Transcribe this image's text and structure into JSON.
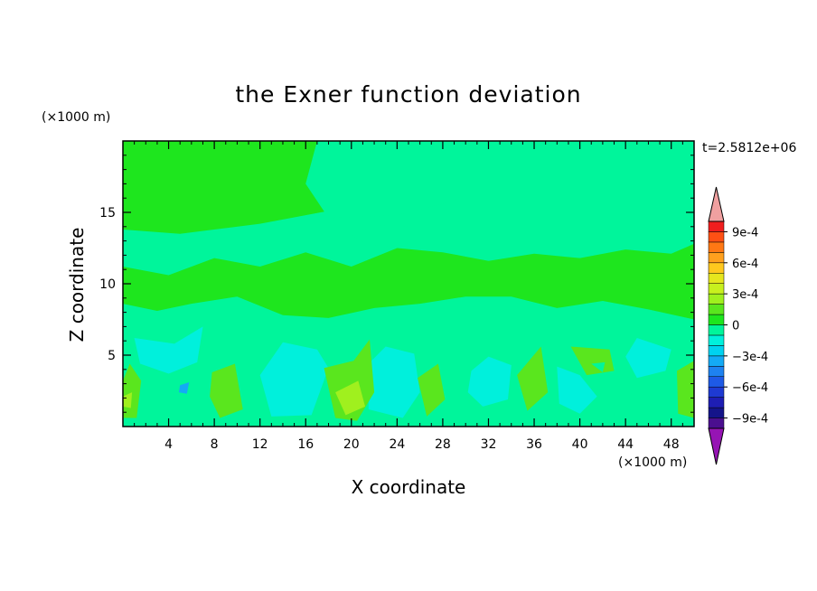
{
  "chart_data": {
    "type": "heatmap",
    "title": "the Exner function deviation",
    "xlabel": "X coordinate",
    "ylabel": "Z coordinate",
    "x_unit": "(×1000 m)",
    "y_unit": "(×1000 m)",
    "time_label": "t=2.5812e+06",
    "xlim": [
      0,
      50
    ],
    "ylim": [
      0,
      20
    ],
    "x_ticks": [
      4,
      8,
      12,
      16,
      20,
      24,
      28,
      32,
      36,
      40,
      44,
      48
    ],
    "y_ticks": [
      5,
      10,
      15
    ],
    "colorbar": {
      "levels": [
        -0.001,
        -0.0009,
        -0.0008,
        -0.0007,
        -0.0006,
        -0.0005,
        -0.0004,
        -0.0003,
        -0.0002,
        -0.0001,
        0,
        0.0001,
        0.0002,
        0.0003,
        0.0004,
        0.0005,
        0.0006,
        0.0007,
        0.0008,
        0.0009,
        0.001
      ],
      "colors": [
        "#4b0f8f",
        "#14148a",
        "#1e1eb4",
        "#1e3ad2",
        "#1e5ae6",
        "#1e82f0",
        "#14aaf5",
        "#00d2f0",
        "#00f0dc",
        "#00f59b",
        "#1ee61e",
        "#5ae61e",
        "#a0f01e",
        "#c8f01e",
        "#e6e61e",
        "#ffc81e",
        "#ffa01e",
        "#ff7814",
        "#ff5014",
        "#f01e1e"
      ],
      "under_color": "#9614b4",
      "over_color": "#f0a0a0",
      "tick_labels": [
        "9e-4",
        "6e-4",
        "3e-4",
        "0",
        "−3e-4",
        "−6e-4",
        "−9e-4"
      ]
    },
    "regions": [
      {
        "level": 0,
        "shape": [
          [
            0,
            20
          ],
          [
            30.5,
            20
          ],
          [
            30,
            17.2
          ],
          [
            28,
            16
          ],
          [
            24,
            15
          ],
          [
            18,
            15.1
          ],
          [
            12,
            14.2
          ],
          [
            5,
            13.5
          ],
          [
            0,
            13.8
          ]
        ]
      },
      {
        "level": -0.0001,
        "shape": [
          [
            17,
            20
          ],
          [
            31,
            20
          ],
          [
            30.5,
            16.8
          ],
          [
            29,
            15.8
          ],
          [
            24,
            14.8
          ],
          [
            18,
            14.6
          ],
          [
            16,
            17
          ]
        ]
      },
      {
        "level": 0,
        "shape": [
          [
            0,
            11.2
          ],
          [
            4,
            10.6
          ],
          [
            8,
            11.8
          ],
          [
            12,
            11.2
          ],
          [
            16,
            12.2
          ],
          [
            20,
            11.2
          ],
          [
            24,
            12.5
          ],
          [
            28,
            12.2
          ],
          [
            32,
            11.6
          ],
          [
            36,
            12.1
          ],
          [
            40,
            11.8
          ],
          [
            44,
            12.4
          ],
          [
            48,
            12.1
          ],
          [
            50,
            12.8
          ],
          [
            50,
            7.5
          ],
          [
            46,
            8.2
          ],
          [
            42,
            8.8
          ],
          [
            38,
            8.3
          ],
          [
            34,
            9.1
          ],
          [
            30,
            9.1
          ],
          [
            26,
            8.6
          ],
          [
            22,
            8.3
          ],
          [
            18,
            7.6
          ],
          [
            14,
            7.8
          ],
          [
            10,
            9.1
          ],
          [
            6,
            8.6
          ],
          [
            3,
            8.1
          ],
          [
            0,
            8.6
          ]
        ]
      },
      {
        "level": -0.0001,
        "shape": [
          [
            20,
            13.4
          ],
          [
            21.5,
            12.7
          ],
          [
            24,
            12.6
          ],
          [
            26,
            13.1
          ],
          [
            25,
            14
          ],
          [
            22,
            14.1
          ]
        ]
      },
      {
        "level": -0.0002,
        "shape": [
          [
            1,
            6.2
          ],
          [
            4.5,
            5.8
          ],
          [
            7,
            7
          ],
          [
            6.5,
            4.5
          ],
          [
            4,
            3.7
          ],
          [
            1.5,
            4.4
          ]
        ]
      },
      {
        "level": -0.0002,
        "shape": [
          [
            12,
            3.6
          ],
          [
            14,
            5.9
          ],
          [
            17,
            5.4
          ],
          [
            18,
            4.1
          ],
          [
            16.5,
            0.8
          ],
          [
            13,
            0.7
          ]
        ]
      },
      {
        "level": -0.0002,
        "shape": [
          [
            21.5,
            4.4
          ],
          [
            23,
            5.6
          ],
          [
            25.5,
            5.1
          ],
          [
            26,
            2.4
          ],
          [
            24.5,
            0.6
          ],
          [
            21.5,
            1.2
          ]
        ]
      },
      {
        "level": -0.0002,
        "shape": [
          [
            30.5,
            3.9
          ],
          [
            32,
            4.9
          ],
          [
            34,
            4.3
          ],
          [
            33.7,
            1.9
          ],
          [
            31.5,
            1.4
          ],
          [
            30.2,
            2.4
          ]
        ]
      },
      {
        "level": -0.0002,
        "shape": [
          [
            38,
            4.2
          ],
          [
            40,
            3.6
          ],
          [
            41.5,
            2.1
          ],
          [
            40,
            0.9
          ],
          [
            38.2,
            1.6
          ]
        ]
      },
      {
        "level": -0.0002,
        "shape": [
          [
            45,
            6.2
          ],
          [
            48,
            5.4
          ],
          [
            47.5,
            3.9
          ],
          [
            45,
            3.4
          ],
          [
            44,
            4.9
          ]
        ]
      },
      {
        "level": -0.0004,
        "shape": [
          [
            5,
            2.9
          ],
          [
            5.8,
            3.1
          ],
          [
            5.6,
            2.3
          ],
          [
            4.9,
            2.4
          ]
        ]
      },
      {
        "level": 0.0001,
        "shape": [
          [
            0,
            3.2
          ],
          [
            0.6,
            4.4
          ],
          [
            1.6,
            3.2
          ],
          [
            1.2,
            0.6
          ],
          [
            0,
            0.6
          ]
        ]
      },
      {
        "level": 0.0001,
        "shape": [
          [
            7.8,
            3.8
          ],
          [
            9.8,
            4.4
          ],
          [
            10.5,
            1.2
          ],
          [
            8.5,
            0.6
          ],
          [
            7.6,
            2.1
          ]
        ]
      },
      {
        "level": 0.0001,
        "shape": [
          [
            17.6,
            4.1
          ],
          [
            20.2,
            4.6
          ],
          [
            21.6,
            6.1
          ],
          [
            22,
            2.4
          ],
          [
            20.5,
            0.4
          ],
          [
            18.6,
            0.6
          ]
        ]
      },
      {
        "level": 0.0002,
        "shape": [
          [
            18.6,
            2.4
          ],
          [
            20.6,
            3.2
          ],
          [
            21.2,
            1.4
          ],
          [
            19.5,
            0.8
          ]
        ]
      },
      {
        "level": 0.0001,
        "shape": [
          [
            25.8,
            3.4
          ],
          [
            27.6,
            4.4
          ],
          [
            28.2,
            1.9
          ],
          [
            26.6,
            0.7
          ]
        ]
      },
      {
        "level": 0.0001,
        "shape": [
          [
            34.5,
            3.6
          ],
          [
            36.6,
            5.6
          ],
          [
            37.2,
            2.4
          ],
          [
            35.4,
            1.1
          ]
        ]
      },
      {
        "level": 0.0001,
        "shape": [
          [
            39.2,
            5.6
          ],
          [
            42.6,
            5.4
          ],
          [
            43,
            3.9
          ],
          [
            40.6,
            3.6
          ]
        ]
      },
      {
        "level": 0.0001,
        "shape": [
          [
            48.5,
            3.9
          ],
          [
            50,
            4.6
          ],
          [
            50,
            0.6
          ],
          [
            48.6,
            0.9
          ]
        ]
      },
      {
        "level": 0.0002,
        "shape": [
          [
            0,
            2.1
          ],
          [
            0.8,
            2.4
          ],
          [
            0.7,
            1.3
          ],
          [
            0,
            1.4
          ]
        ]
      },
      {
        "level": -0.0001,
        "shape": [
          [
            41,
            4.4
          ],
          [
            42.2,
            4.5
          ],
          [
            42,
            3.8
          ]
        ]
      }
    ]
  }
}
